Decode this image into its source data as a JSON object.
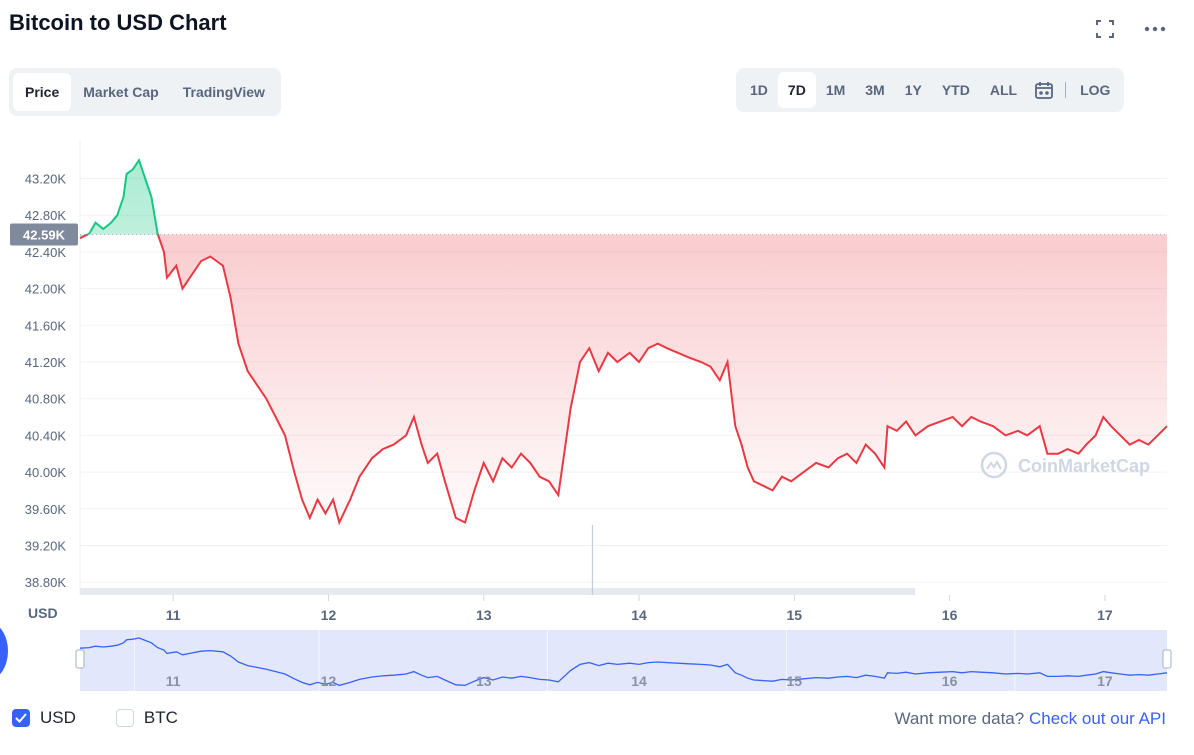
{
  "title": "Bitcoin to USD Chart",
  "icons": {
    "fullscreen": "fullscreen-icon",
    "more": "more-icon",
    "calendar": "calendar-icon"
  },
  "view_tabs": [
    {
      "label": "Price",
      "active": true
    },
    {
      "label": "Market Cap",
      "active": false
    },
    {
      "label": "TradingView",
      "active": false
    }
  ],
  "range_tabs": [
    {
      "label": "1D",
      "active": false
    },
    {
      "label": "7D",
      "active": true
    },
    {
      "label": "1M",
      "active": false
    },
    {
      "label": "3M",
      "active": false
    },
    {
      "label": "1Y",
      "active": false
    },
    {
      "label": "YTD",
      "active": false
    },
    {
      "label": "ALL",
      "active": false
    }
  ],
  "log_label": "LOG",
  "footer": {
    "usd_label": "USD",
    "usd_checked": true,
    "btc_label": "BTC",
    "btc_checked": false,
    "more_text": "Want more data?",
    "api_link": "Check out our API"
  },
  "colors": {
    "up": "#16c784",
    "down": "#ea3943",
    "accent": "#3861fb",
    "navigator_fill": "#e2e7fb"
  },
  "chart_data": {
    "type": "line",
    "currency_label": "USD",
    "watermark": "CoinMarketCap",
    "y_ticks": [
      "38.80K",
      "39.20K",
      "39.60K",
      "40.00K",
      "40.40K",
      "40.80K",
      "41.20K",
      "41.60K",
      "42.00K",
      "42.40K",
      "42.80K",
      "43.20K"
    ],
    "ylim": [
      38660,
      43620
    ],
    "x_ticks": [
      {
        "label": "11",
        "x": 11.0
      },
      {
        "label": "12",
        "x": 12.0
      },
      {
        "label": "13",
        "x": 13.0
      },
      {
        "label": "14",
        "x": 14.0
      },
      {
        "label": "15",
        "x": 15.0
      },
      {
        "label": "16",
        "x": 16.0
      },
      {
        "label": "17",
        "x": 17.0
      }
    ],
    "xlim": [
      10.4,
      17.4
    ],
    "reference_price": 42590,
    "reference_label": "42.59K",
    "series": [
      {
        "points": [
          [
            10.4,
            42550
          ],
          [
            10.46,
            42600
          ],
          [
            10.5,
            42720
          ],
          [
            10.55,
            42650
          ],
          [
            10.6,
            42720
          ],
          [
            10.64,
            42800
          ],
          [
            10.68,
            43000
          ],
          [
            10.7,
            43250
          ],
          [
            10.74,
            43300
          ],
          [
            10.78,
            43400
          ],
          [
            10.82,
            43200
          ],
          [
            10.86,
            43000
          ],
          [
            10.9,
            42600
          ],
          [
            10.94,
            42400
          ],
          [
            10.96,
            42120
          ],
          [
            11.02,
            42250
          ],
          [
            11.06,
            42000
          ],
          [
            11.12,
            42150
          ],
          [
            11.18,
            42300
          ],
          [
            11.24,
            42350
          ],
          [
            11.32,
            42250
          ],
          [
            11.37,
            41900
          ],
          [
            11.42,
            41400
          ],
          [
            11.48,
            41100
          ],
          [
            11.54,
            40950
          ],
          [
            11.6,
            40800
          ],
          [
            11.66,
            40600
          ],
          [
            11.72,
            40400
          ],
          [
            11.78,
            40000
          ],
          [
            11.83,
            39700
          ],
          [
            11.88,
            39500
          ],
          [
            11.93,
            39700
          ],
          [
            11.98,
            39550
          ],
          [
            12.03,
            39700
          ],
          [
            12.07,
            39450
          ],
          [
            12.14,
            39700
          ],
          [
            12.2,
            39950
          ],
          [
            12.28,
            40150
          ],
          [
            12.35,
            40250
          ],
          [
            12.42,
            40300
          ],
          [
            12.5,
            40400
          ],
          [
            12.55,
            40600
          ],
          [
            12.6,
            40300
          ],
          [
            12.64,
            40100
          ],
          [
            12.7,
            40200
          ],
          [
            12.75,
            39900
          ],
          [
            12.82,
            39500
          ],
          [
            12.88,
            39450
          ],
          [
            12.94,
            39800
          ],
          [
            13.0,
            40100
          ],
          [
            13.06,
            39900
          ],
          [
            13.12,
            40150
          ],
          [
            13.18,
            40050
          ],
          [
            13.24,
            40200
          ],
          [
            13.3,
            40100
          ],
          [
            13.36,
            39950
          ],
          [
            13.42,
            39900
          ],
          [
            13.48,
            39750
          ],
          [
            13.56,
            40700
          ],
          [
            13.62,
            41200
          ],
          [
            13.68,
            41350
          ],
          [
            13.74,
            41100
          ],
          [
            13.8,
            41300
          ],
          [
            13.86,
            41200
          ],
          [
            13.94,
            41300
          ],
          [
            14.0,
            41200
          ],
          [
            14.06,
            41350
          ],
          [
            14.12,
            41400
          ],
          [
            14.18,
            41350
          ],
          [
            14.25,
            41300
          ],
          [
            14.32,
            41250
          ],
          [
            14.4,
            41200
          ],
          [
            14.46,
            41150
          ],
          [
            14.52,
            41000
          ],
          [
            14.57,
            41200
          ],
          [
            14.62,
            40500
          ],
          [
            14.66,
            40300
          ],
          [
            14.7,
            40050
          ],
          [
            14.74,
            39900
          ],
          [
            14.8,
            39850
          ],
          [
            14.86,
            39800
          ],
          [
            14.92,
            39950
          ],
          [
            14.98,
            39900
          ],
          [
            15.06,
            40000
          ],
          [
            15.14,
            40100
          ],
          [
            15.22,
            40050
          ],
          [
            15.28,
            40150
          ],
          [
            15.34,
            40200
          ],
          [
            15.4,
            40100
          ],
          [
            15.46,
            40300
          ],
          [
            15.52,
            40200
          ],
          [
            15.58,
            40050
          ],
          [
            15.6,
            40500
          ],
          [
            15.66,
            40450
          ],
          [
            15.72,
            40550
          ],
          [
            15.78,
            40400
          ],
          [
            15.86,
            40500
          ],
          [
            15.94,
            40550
          ],
          [
            16.02,
            40600
          ],
          [
            16.08,
            40500
          ],
          [
            16.14,
            40600
          ],
          [
            16.2,
            40550
          ],
          [
            16.28,
            40500
          ],
          [
            16.36,
            40400
          ],
          [
            16.44,
            40450
          ],
          [
            16.5,
            40400
          ],
          [
            16.58,
            40500
          ],
          [
            16.63,
            40200
          ],
          [
            16.7,
            40200
          ],
          [
            16.76,
            40250
          ],
          [
            16.83,
            40200
          ],
          [
            16.88,
            40300
          ],
          [
            16.94,
            40400
          ],
          [
            16.99,
            40600
          ],
          [
            17.04,
            40500
          ],
          [
            17.1,
            40400
          ],
          [
            17.16,
            40300
          ],
          [
            17.22,
            40350
          ],
          [
            17.28,
            40300
          ],
          [
            17.34,
            40400
          ],
          [
            17.4,
            40500
          ]
        ]
      }
    ],
    "volume_spike_x": 13.7,
    "grid": true
  }
}
